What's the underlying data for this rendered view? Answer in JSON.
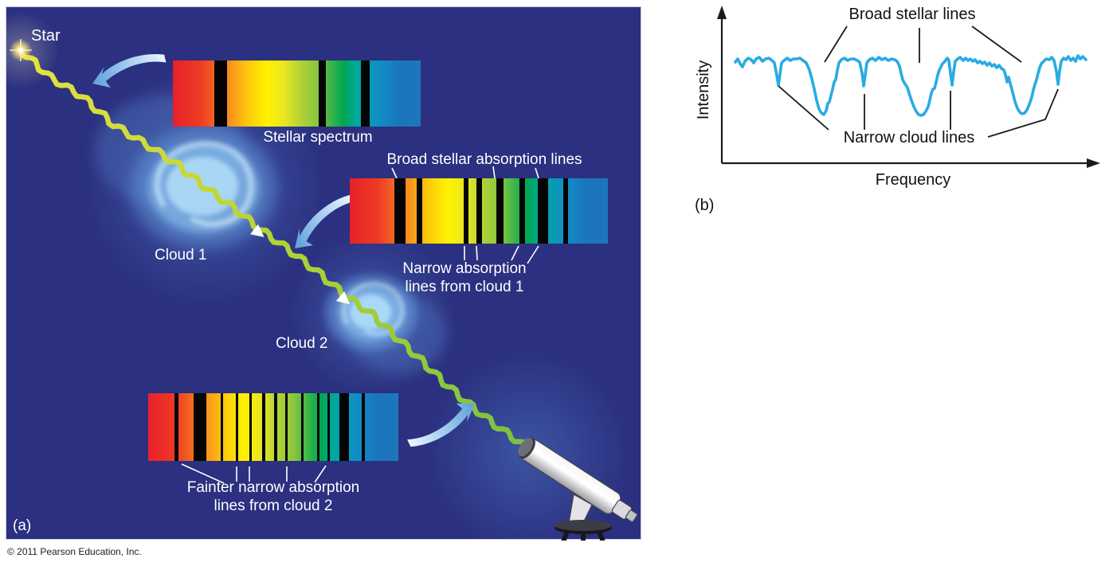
{
  "figure": {
    "credit": "© 2011 Pearson Education, Inc.",
    "panel_a_tag": "(a)",
    "panel_b_tag": "(b)"
  },
  "colors": {
    "panel_background": "#2b3080",
    "label_text": "#ffffff",
    "curve": "#29abe2",
    "axis": "#1a1a1a",
    "ray_start": "#e6e33f",
    "ray_end": "#7ac143",
    "swoosh_arrow_dark": "#5e9fd8",
    "swoosh_arrow_light": "#eaf7fe"
  },
  "panel_a": {
    "star_label": "Star",
    "cloud1_label": "Cloud 1",
    "cloud2_label": "Cloud 2",
    "spectra": [
      {
        "name": "stellar-spectrum",
        "caption": "Stellar spectrum",
        "lines": [
          {
            "pos": 16.7,
            "width": 5.1,
            "type": "broad"
          },
          {
            "pos": 58.8,
            "width": 2.9,
            "type": "broad"
          },
          {
            "pos": 75.9,
            "width": 3.5,
            "type": "broad"
          }
        ]
      },
      {
        "name": "spectrum-after-cloud-1",
        "label_top": "Broad stellar absorption lines",
        "label_bottom_line1": "Narrow absorption",
        "label_bottom_line2": "lines from cloud 1",
        "lines": [
          {
            "pos": 17.2,
            "width": 4.3,
            "type": "broad"
          },
          {
            "pos": 25.8,
            "width": 2.2,
            "type": "narrow"
          },
          {
            "pos": 44.0,
            "width": 2.1,
            "type": "narrow"
          },
          {
            "pos": 49.2,
            "width": 2.1,
            "type": "narrow"
          },
          {
            "pos": 56.9,
            "width": 2.8,
            "type": "broad"
          },
          {
            "pos": 65.8,
            "width": 2.1,
            "type": "narrow"
          },
          {
            "pos": 72.9,
            "width": 4.0,
            "type": "broad"
          },
          {
            "pos": 82.8,
            "width": 1.8,
            "type": "narrow"
          }
        ]
      },
      {
        "name": "spectrum-after-cloud-2",
        "label_bottom_line1": "Fainter narrow absorption",
        "label_bottom_line2": "lines from cloud 2",
        "lines": [
          {
            "pos": 10.5,
            "width": 1.6,
            "type": "narrow"
          },
          {
            "pos": 18.2,
            "width": 5.1,
            "type": "broad"
          },
          {
            "pos": 29.0,
            "width": 1.0,
            "type": "narrow"
          },
          {
            "pos": 35.0,
            "width": 1.0,
            "type": "narrow"
          },
          {
            "pos": 40.4,
            "width": 1.1,
            "type": "narrow"
          },
          {
            "pos": 45.5,
            "width": 1.3,
            "type": "narrow"
          },
          {
            "pos": 50.3,
            "width": 1.3,
            "type": "narrow"
          },
          {
            "pos": 54.8,
            "width": 1.0,
            "type": "narrow"
          },
          {
            "pos": 61.1,
            "width": 1.0,
            "type": "narrow"
          },
          {
            "pos": 67.5,
            "width": 0.9,
            "type": "narrow"
          },
          {
            "pos": 71.7,
            "width": 1.0,
            "type": "narrow"
          },
          {
            "pos": 76.4,
            "width": 3.8,
            "type": "broad"
          },
          {
            "pos": 85.4,
            "width": 1.3,
            "type": "narrow"
          }
        ]
      }
    ]
  },
  "panel_b": {
    "ylabel": "Intensity",
    "xlabel": "Frequency",
    "annotation_top": "Broad stellar lines",
    "annotation_bottom": "Narrow cloud lines"
  },
  "chart_data": {
    "type": "line",
    "title": "",
    "xlabel": "Frequency",
    "ylabel": "Intensity",
    "axis_ticks": "none (arbitrary units)",
    "grid": false,
    "legend": false,
    "features": {
      "broad_stellar_dips_center_relative_x": [
        0.25,
        0.52,
        0.82
      ],
      "narrow_cloud_dips_relative_x": [
        0.12,
        0.37,
        0.61,
        0.92
      ]
    },
    "series": [
      {
        "name": "Observed intensity trace",
        "units": "relative (pixel-space of panel b, y down)",
        "points": [
          [
            63,
            78
          ],
          [
            66,
            74
          ],
          [
            69,
            80
          ],
          [
            72,
            84
          ],
          [
            75,
            77
          ],
          [
            79,
            73
          ],
          [
            83,
            75
          ],
          [
            86,
            79
          ],
          [
            89,
            74
          ],
          [
            93,
            72
          ],
          [
            97,
            77
          ],
          [
            101,
            74
          ],
          [
            105,
            73
          ],
          [
            109,
            76
          ],
          [
            112,
            79
          ],
          [
            115,
            95
          ],
          [
            117,
            107
          ],
          [
            119,
            93
          ],
          [
            121,
            79
          ],
          [
            124,
            76
          ],
          [
            128,
            73
          ],
          [
            132,
            76
          ],
          [
            136,
            74
          ],
          [
            140,
            74
          ],
          [
            144,
            73
          ],
          [
            148,
            76
          ],
          [
            152,
            79
          ],
          [
            156,
            88
          ],
          [
            159,
            99
          ],
          [
            162,
            112
          ],
          [
            165,
            126
          ],
          [
            168,
            137
          ],
          [
            171,
            142
          ],
          [
            174,
            144
          ],
          [
            177,
            139
          ],
          [
            179,
            130
          ],
          [
            181,
            128
          ],
          [
            183,
            120
          ],
          [
            185,
            112
          ],
          [
            187,
            103
          ],
          [
            189,
            100
          ],
          [
            191,
            88
          ],
          [
            193,
            79
          ],
          [
            196,
            75
          ],
          [
            200,
            73
          ],
          [
            204,
            76
          ],
          [
            208,
            74
          ],
          [
            212,
            74
          ],
          [
            216,
            76
          ],
          [
            219,
            78
          ],
          [
            222,
            92
          ],
          [
            224,
            108
          ],
          [
            226,
            94
          ],
          [
            228,
            79
          ],
          [
            231,
            75
          ],
          [
            235,
            73
          ],
          [
            239,
            76
          ],
          [
            243,
            72
          ],
          [
            247,
            75
          ],
          [
            251,
            73
          ],
          [
            255,
            76
          ],
          [
            259,
            74
          ],
          [
            263,
            75
          ],
          [
            266,
            77
          ],
          [
            269,
            83
          ],
          [
            271,
            92
          ],
          [
            273,
            100
          ],
          [
            275,
            104
          ],
          [
            277,
            107
          ],
          [
            279,
            110
          ],
          [
            281,
            117
          ],
          [
            284,
            126
          ],
          [
            287,
            134
          ],
          [
            290,
            140
          ],
          [
            293,
            144
          ],
          [
            296,
            145
          ],
          [
            299,
            144
          ],
          [
            302,
            140
          ],
          [
            305,
            134
          ],
          [
            307,
            126
          ],
          [
            309,
            117
          ],
          [
            311,
            112
          ],
          [
            313,
            111
          ],
          [
            315,
            103
          ],
          [
            317,
            94
          ],
          [
            319,
            88
          ],
          [
            321,
            84
          ],
          [
            323,
            80
          ],
          [
            326,
            77
          ],
          [
            329,
            73
          ],
          [
            331,
            76
          ],
          [
            333,
            92
          ],
          [
            335,
            107
          ],
          [
            337,
            90
          ],
          [
            339,
            77
          ],
          [
            342,
            74
          ],
          [
            345,
            72
          ],
          [
            349,
            76
          ],
          [
            352,
            73
          ],
          [
            355,
            76
          ],
          [
            358,
            74
          ],
          [
            361,
            77
          ],
          [
            364,
            75
          ],
          [
            367,
            79
          ],
          [
            370,
            77
          ],
          [
            373,
            80
          ],
          [
            376,
            78
          ],
          [
            379,
            82
          ],
          [
            382,
            79
          ],
          [
            385,
            83
          ],
          [
            388,
            81
          ],
          [
            391,
            85
          ],
          [
            394,
            82
          ],
          [
            397,
            86
          ],
          [
            400,
            88
          ],
          [
            402,
            94
          ],
          [
            404,
            103
          ],
          [
            406,
            97
          ],
          [
            408,
            105
          ],
          [
            410,
            112
          ],
          [
            412,
            120
          ],
          [
            414,
            128
          ],
          [
            417,
            136
          ],
          [
            420,
            141
          ],
          [
            423,
            143
          ],
          [
            426,
            142
          ],
          [
            429,
            138
          ],
          [
            432,
            131
          ],
          [
            435,
            122
          ],
          [
            437,
            113
          ],
          [
            439,
            106
          ],
          [
            441,
            100
          ],
          [
            443,
            92
          ],
          [
            445,
            85
          ],
          [
            447,
            80
          ],
          [
            450,
            77
          ],
          [
            453,
            74
          ],
          [
            457,
            75
          ],
          [
            460,
            72
          ],
          [
            463,
            76
          ],
          [
            466,
            90
          ],
          [
            468,
            106
          ],
          [
            470,
            89
          ],
          [
            472,
            77
          ],
          [
            475,
            73
          ],
          [
            478,
            75
          ],
          [
            481,
            71
          ],
          [
            484,
            76
          ],
          [
            487,
            73
          ],
          [
            490,
            77
          ],
          [
            493,
            70
          ],
          [
            496,
            74
          ],
          [
            499,
            71
          ],
          [
            503,
            75
          ]
        ]
      }
    ]
  }
}
